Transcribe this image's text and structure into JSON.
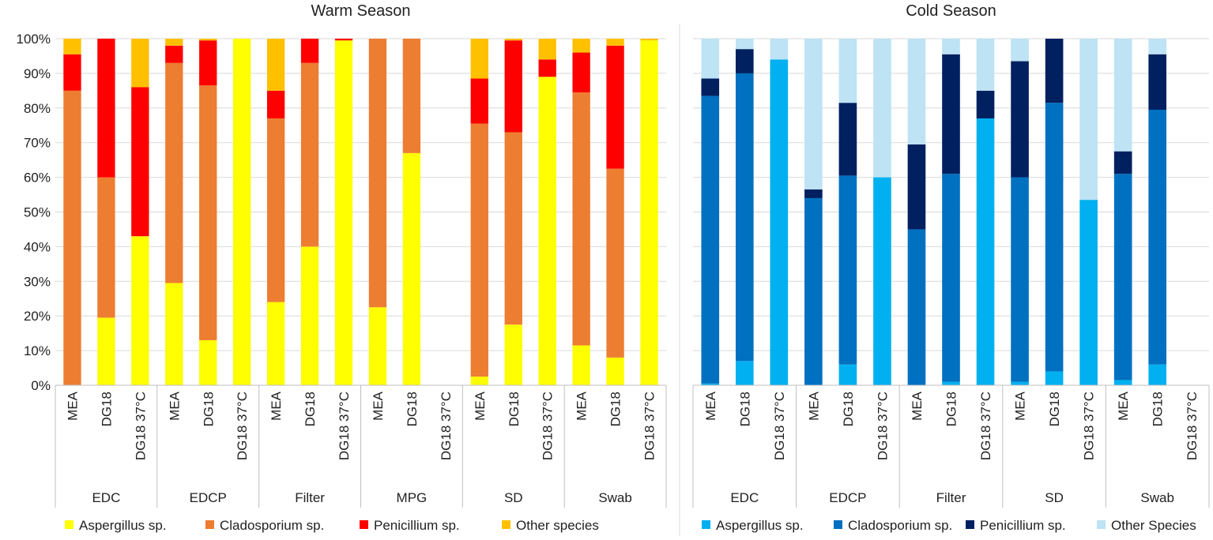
{
  "chart_data": [
    {
      "type": "bar",
      "stacked": true,
      "title": "Warm Season",
      "ylim": [
        0,
        100
      ],
      "yticks": [
        "0%",
        "10%",
        "20%",
        "30%",
        "40%",
        "50%",
        "60%",
        "70%",
        "80%",
        "90%",
        "100%"
      ],
      "groups": [
        {
          "name": "EDC",
          "samples": [
            "MEA",
            "DG18",
            "DG18 37°C"
          ]
        },
        {
          "name": "EDCP",
          "samples": [
            "MEA",
            "DG18",
            "DG18 37°C"
          ]
        },
        {
          "name": "Filter",
          "samples": [
            "MEA",
            "DG18",
            "DG18 37°C"
          ]
        },
        {
          "name": "MPG",
          "samples": [
            "MEA",
            "DG18",
            "DG18 37°C"
          ]
        },
        {
          "name": "SD",
          "samples": [
            "MEA",
            "DG18",
            "DG18 37°C"
          ]
        },
        {
          "name": "Swab",
          "samples": [
            "MEA",
            "DG18",
            "DG18 37°C"
          ]
        }
      ],
      "series": [
        {
          "name": "Aspergillus sp.",
          "color": "#FFFF00",
          "values": [
            0,
            19.5,
            43,
            29.5,
            13,
            100,
            24,
            40,
            99.5,
            22.5,
            67,
            0,
            2.5,
            17.5,
            89,
            11.5,
            8,
            99.5
          ]
        },
        {
          "name": "Cladosporium sp.",
          "color": "#ED7D31",
          "values": [
            85,
            40.5,
            0,
            63.5,
            73.5,
            0,
            53,
            53,
            0,
            77.5,
            33,
            0,
            73,
            55.5,
            0,
            73,
            54.5,
            0
          ]
        },
        {
          "name": "Penicillium sp.",
          "color": "#FF0000",
          "values": [
            10.5,
            40,
            43,
            5,
            13,
            0,
            8,
            7,
            0.5,
            0,
            0,
            0,
            13,
            26.5,
            5,
            11.5,
            35.5,
            0
          ]
        },
        {
          "name": "Other species",
          "color": "#FFC000",
          "values": [
            4.5,
            0,
            14,
            2,
            0.5,
            0,
            15,
            0,
            0,
            0,
            0,
            0,
            11.5,
            0.5,
            6,
            4,
            2,
            0.5
          ]
        }
      ],
      "legend": "bottom",
      "grid": true
    },
    {
      "type": "bar",
      "stacked": true,
      "title": "Cold Season",
      "ylim": [
        0,
        100
      ],
      "groups": [
        {
          "name": "EDC",
          "samples": [
            "MEA",
            "DG18",
            "DG18 37°C"
          ]
        },
        {
          "name": "EDCP",
          "samples": [
            "MEA",
            "DG18",
            "DG18 37°C"
          ]
        },
        {
          "name": "Filter",
          "samples": [
            "MEA",
            "DG18",
            "DG18 37°C"
          ]
        },
        {
          "name": "SD",
          "samples": [
            "MEA",
            "DG18",
            "DG18 37°C"
          ]
        },
        {
          "name": "Swab",
          "samples": [
            "MEA",
            "DG18",
            "DG18 37°C"
          ]
        }
      ],
      "series": [
        {
          "name": "Aspergillus sp.",
          "color": "#00B0F0",
          "values": [
            0.5,
            7,
            94,
            0,
            6,
            60,
            0,
            1,
            77,
            1,
            4,
            53.5,
            1.5,
            6,
            0
          ]
        },
        {
          "name": "Cladosporium sp.",
          "color": "#0070C0",
          "values": [
            83,
            83,
            0,
            54,
            54.5,
            0,
            45,
            60,
            0,
            59,
            77.5,
            0,
            59.5,
            73.5,
            0
          ]
        },
        {
          "name": "Penicillium sp.",
          "color": "#002060",
          "values": [
            5,
            7,
            0,
            2.5,
            21,
            0,
            24.5,
            34.5,
            8,
            33.5,
            18.5,
            0,
            6.5,
            16,
            0
          ]
        },
        {
          "name": "Other Species",
          "color": "#BDE3F4",
          "values": [
            11.5,
            3,
            6,
            43.5,
            18.5,
            40,
            30.5,
            4.5,
            15,
            6.5,
            0,
            46.5,
            32.5,
            4.5,
            0
          ]
        }
      ],
      "legend": "bottom",
      "grid": true
    }
  ]
}
